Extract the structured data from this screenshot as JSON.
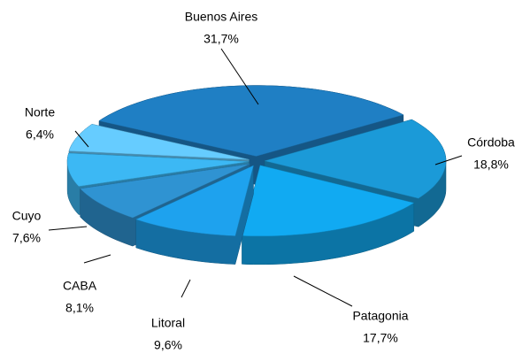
{
  "chart_data": {
    "type": "pie",
    "categories": [
      "Buenos Aires",
      "Córdoba",
      "Patagonia",
      "Litoral",
      "CABA",
      "Cuyo",
      "Norte"
    ],
    "values": [
      31.7,
      18.8,
      17.7,
      9.6,
      8.1,
      7.6,
      6.4
    ],
    "value_labels": [
      "31,7%",
      "18,8%",
      "17,7%",
      "9,6%",
      "8,1%",
      "7,6%",
      "6,4%"
    ],
    "colors": [
      "#1f7fc4",
      "#1b9ad8",
      "#11aaf2",
      "#1ea2ee",
      "#2f93d2",
      "#3cb8f4",
      "#66ccff"
    ]
  }
}
